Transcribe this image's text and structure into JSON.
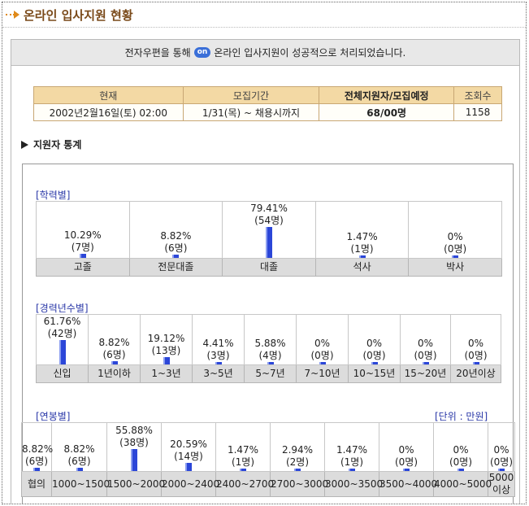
{
  "page": {
    "title": "온라인 입사지원 현황"
  },
  "message": {
    "before": "전자우편을 통해",
    "badge": "on",
    "after": "온라인 입사지원이 성공적으로 처리되었습니다."
  },
  "info_table": {
    "headers": [
      "현재",
      "모집기간",
      "전체지원자/모집예정",
      "조회수"
    ],
    "values": [
      "2002년2월16일(토) 02:00",
      "1/31(목) ~ 채용시까지",
      "68/00명",
      "1158"
    ]
  },
  "section_title": "지원자 통계",
  "education": {
    "label": "[학력별]",
    "items": [
      {
        "name": "고졸",
        "pct": "10.29%",
        "count": "(7명)",
        "value": 10.29
      },
      {
        "name": "전문대졸",
        "pct": "8.82%",
        "count": "(6명)",
        "value": 8.82
      },
      {
        "name": "대졸",
        "pct": "79.41%",
        "count": "(54명)",
        "value": 79.41
      },
      {
        "name": "석사",
        "pct": "1.47%",
        "count": "(1명)",
        "value": 1.47
      },
      {
        "name": "박사",
        "pct": "0%",
        "count": "(0명)",
        "value": 0
      }
    ]
  },
  "career": {
    "label": "[경력년수별]",
    "items": [
      {
        "name": "신입",
        "pct": "61.76%",
        "count": "(42명)",
        "value": 61.76
      },
      {
        "name": "1년이하",
        "pct": "8.82%",
        "count": "(6명)",
        "value": 8.82
      },
      {
        "name": "1~3년",
        "pct": "19.12%",
        "count": "(13명)",
        "value": 19.12
      },
      {
        "name": "3~5년",
        "pct": "4.41%",
        "count": "(3명)",
        "value": 4.41
      },
      {
        "name": "5~7년",
        "pct": "5.88%",
        "count": "(4명)",
        "value": 5.88
      },
      {
        "name": "7~10년",
        "pct": "0%",
        "count": "(0명)",
        "value": 0
      },
      {
        "name": "10~15년",
        "pct": "0%",
        "count": "(0명)",
        "value": 0
      },
      {
        "name": "15~20년",
        "pct": "0%",
        "count": "(0명)",
        "value": 0
      },
      {
        "name": "20년이상",
        "pct": "0%",
        "count": "(0명)",
        "value": 0
      }
    ]
  },
  "salary": {
    "label": "[연봉별]",
    "unit": "[단위 : 만원]",
    "items": [
      {
        "name": "협의",
        "pct": "8.82%",
        "count": "(6명)",
        "value": 8.82
      },
      {
        "name": "1000~1500",
        "pct": "8.82%",
        "count": "(6명)",
        "value": 8.82
      },
      {
        "name": "1500~2000",
        "pct": "55.88%",
        "count": "(38명)",
        "value": 55.88
      },
      {
        "name": "2000~2400",
        "pct": "20.59%",
        "count": "(14명)",
        "value": 20.59
      },
      {
        "name": "2400~2700",
        "pct": "1.47%",
        "count": "(1명)",
        "value": 1.47
      },
      {
        "name": "2700~3000",
        "pct": "2.94%",
        "count": "(2명)",
        "value": 2.94
      },
      {
        "name": "3000~3500",
        "pct": "1.47%",
        "count": "(1명)",
        "value": 1.47
      },
      {
        "name": "3500~4000",
        "pct": "0%",
        "count": "(0명)",
        "value": 0
      },
      {
        "name": "4000~5000",
        "pct": "0%",
        "count": "(0명)",
        "value": 0
      },
      {
        "name": "5000이상",
        "pct": "0%",
        "count": "(0명)",
        "value": 0
      }
    ]
  },
  "colors": {
    "bar": "#2b46d8",
    "accent": "#e08a1a",
    "label_blue": "#2b39a8",
    "header_bg": "#f3d9a4"
  }
}
